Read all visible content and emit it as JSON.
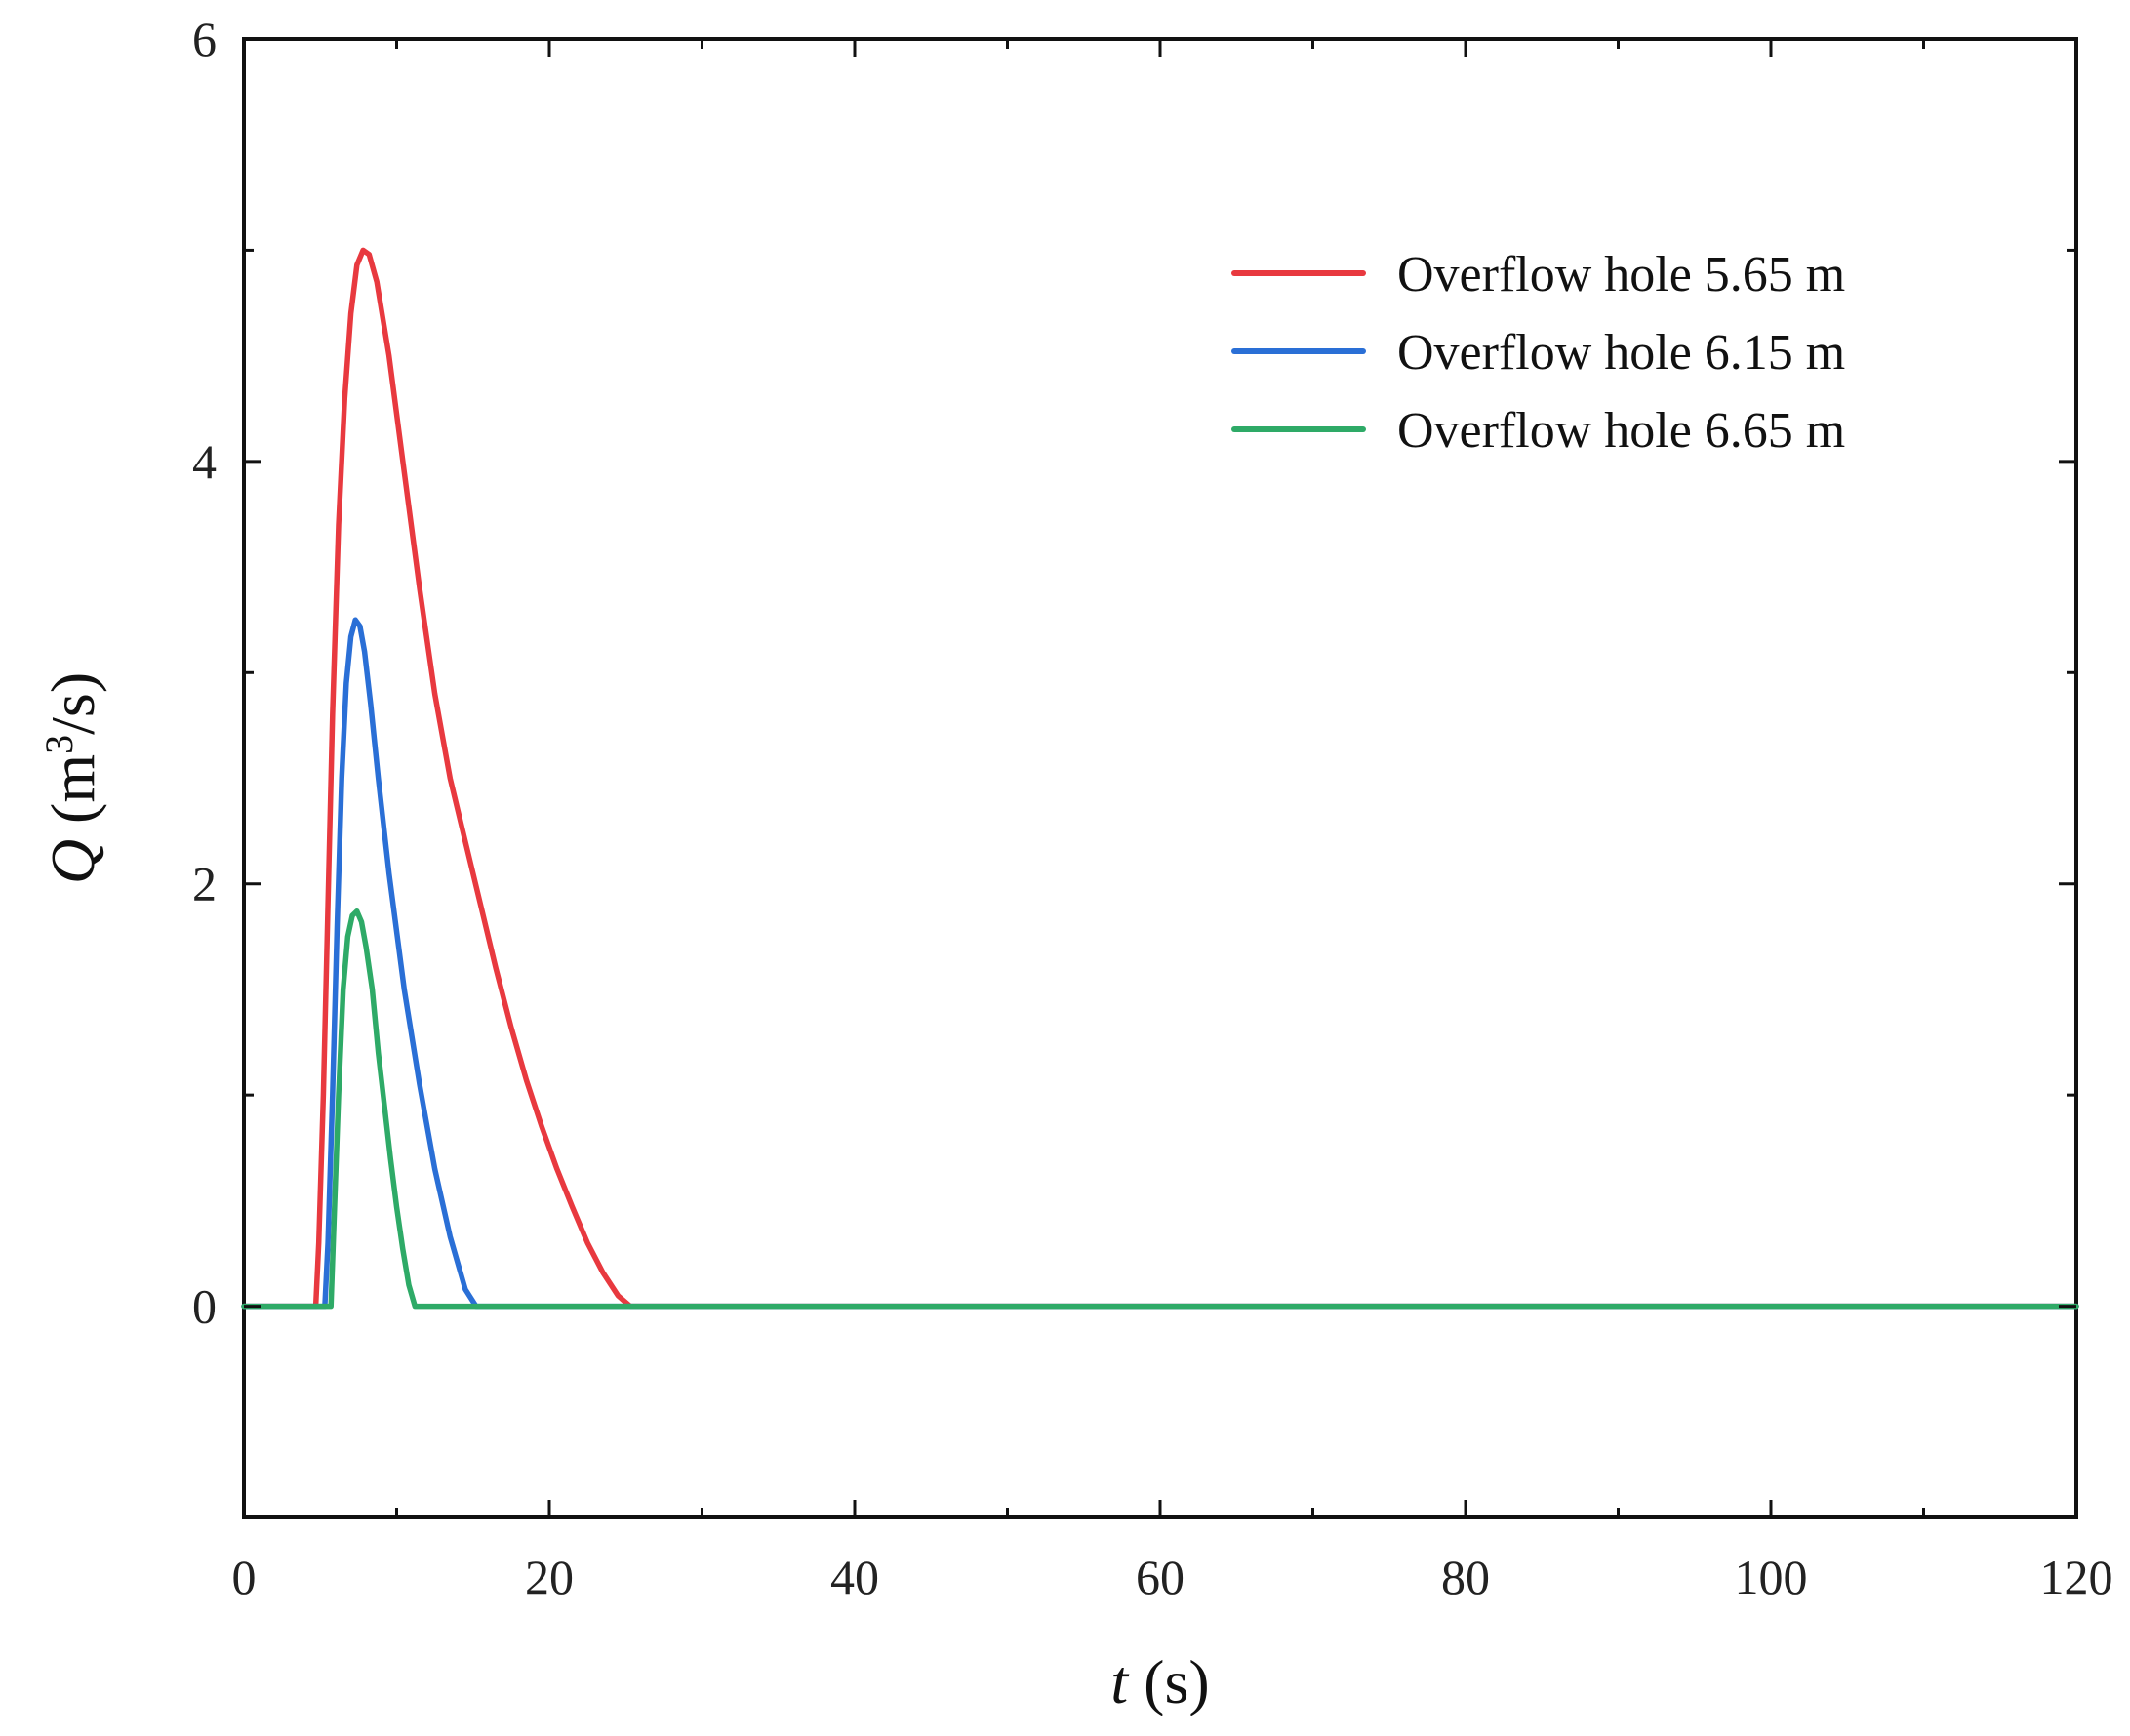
{
  "chart_data": {
    "type": "line",
    "title": "",
    "xlabel": {
      "symbol": "t",
      "unit": "(s)"
    },
    "ylabel": {
      "symbol": "Q",
      "unit_open": "(m",
      "unit_sup": "3",
      "unit_close": "/s)"
    },
    "xlim": [
      0,
      120
    ],
    "ylim": [
      -1,
      6
    ],
    "x_ticks": [
      0,
      20,
      40,
      60,
      80,
      100,
      120
    ],
    "x_tick_labels": [
      "0",
      "20",
      "40",
      "60",
      "80",
      "100",
      "120"
    ],
    "x_minor_ticks": [
      10,
      30,
      50,
      70,
      90,
      110
    ],
    "y_ticks": [
      0,
      2,
      4,
      6
    ],
    "y_tick_labels": [
      "0",
      "2",
      "4",
      "6"
    ],
    "y_minor_ticks": [
      1,
      3,
      5
    ],
    "grid": false,
    "legend_position": "top-right",
    "series": [
      {
        "name": "Overflow hole 5.65 m",
        "color": "#e8393f",
        "x": [
          0,
          4.7,
          4.9,
          5.2,
          5.5,
          5.8,
          6.2,
          6.6,
          7.0,
          7.4,
          7.8,
          8.2,
          8.7,
          9.5,
          10.5,
          11.5,
          12.5,
          13.5,
          14.5,
          15.5,
          16.5,
          17.5,
          18.5,
          19.5,
          20.5,
          21.5,
          22.5,
          23.5,
          24.5,
          25.3,
          120
        ],
        "y": [
          0,
          0,
          0.3,
          1.0,
          1.9,
          2.8,
          3.7,
          4.3,
          4.7,
          4.93,
          5.0,
          4.98,
          4.85,
          4.5,
          3.95,
          3.4,
          2.9,
          2.5,
          2.2,
          1.9,
          1.6,
          1.32,
          1.07,
          0.85,
          0.65,
          0.47,
          0.3,
          0.16,
          0.05,
          0,
          0
        ]
      },
      {
        "name": "Overflow hole 6.15 m",
        "color": "#2a6fd6",
        "x": [
          0,
          5.3,
          5.5,
          5.8,
          6.1,
          6.4,
          6.7,
          7.0,
          7.3,
          7.6,
          7.9,
          8.3,
          8.8,
          9.5,
          10.5,
          11.5,
          12.5,
          13.5,
          14.5,
          15.2,
          120
        ],
        "y": [
          0,
          0,
          0.3,
          1.0,
          1.8,
          2.5,
          2.95,
          3.17,
          3.25,
          3.22,
          3.1,
          2.85,
          2.5,
          2.05,
          1.5,
          1.05,
          0.65,
          0.33,
          0.08,
          0,
          0
        ]
      },
      {
        "name": "Overflow hole 6.65 m",
        "color": "#2eaa67",
        "x": [
          0,
          5.7,
          5.9,
          6.2,
          6.5,
          6.8,
          7.1,
          7.4,
          7.7,
          8.0,
          8.4,
          8.8,
          9.2,
          9.6,
          10.0,
          10.4,
          10.8,
          11.2,
          120
        ],
        "y": [
          0,
          0,
          0.4,
          1.0,
          1.5,
          1.75,
          1.85,
          1.87,
          1.82,
          1.7,
          1.5,
          1.2,
          0.95,
          0.7,
          0.47,
          0.27,
          0.1,
          0,
          0
        ]
      }
    ]
  }
}
